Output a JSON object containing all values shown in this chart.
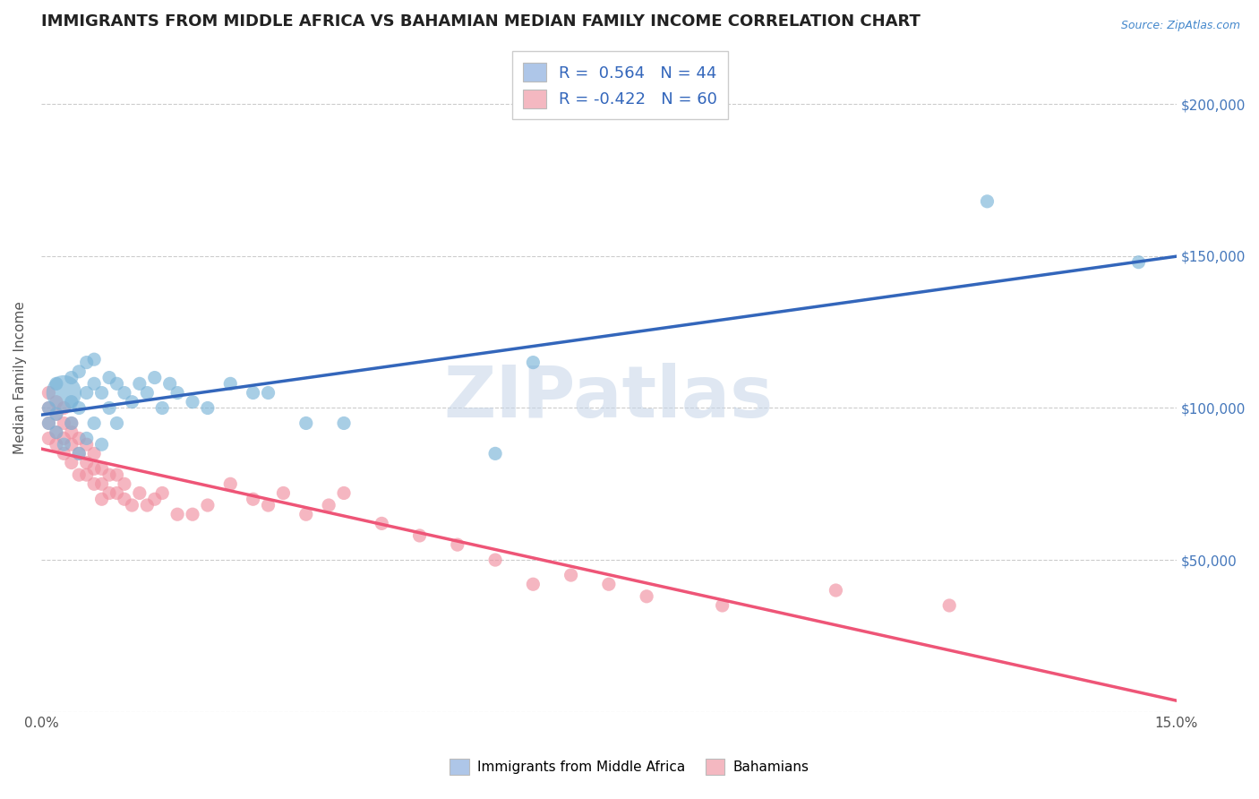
{
  "title": "IMMIGRANTS FROM MIDDLE AFRICA VS BAHAMIAN MEDIAN FAMILY INCOME CORRELATION CHART",
  "source": "Source: ZipAtlas.com",
  "ylabel": "Median Family Income",
  "xlim": [
    0.0,
    0.15
  ],
  "ylim": [
    0,
    220000
  ],
  "yticks_right": [
    50000,
    100000,
    150000,
    200000
  ],
  "ytick_labels_right": [
    "$50,000",
    "$100,000",
    "$150,000",
    "$200,000"
  ],
  "xticks": [
    0.0,
    0.15
  ],
  "xtick_labels": [
    "0.0%",
    "15.0%"
  ],
  "legend_entries": [
    {
      "color": "#aec6e8",
      "r": "0.564",
      "n": "44"
    },
    {
      "color": "#f4b8c1",
      "r": "-0.422",
      "n": "60"
    }
  ],
  "legend_labels": [
    "Immigrants from Middle Africa",
    "Bahamians"
  ],
  "blue_scatter_color": "#7ab4d8",
  "pink_scatter_color": "#f090a0",
  "blue_line_color": "#3366bb",
  "pink_line_color": "#ee5577",
  "watermark": "ZIPatlas",
  "background_color": "#ffffff",
  "grid_color": "#cccccc",
  "title_fontsize": 13,
  "label_fontsize": 11,
  "tick_fontsize": 11,
  "blue_scatter_x": [
    0.001,
    0.001,
    0.002,
    0.002,
    0.002,
    0.003,
    0.003,
    0.004,
    0.004,
    0.004,
    0.005,
    0.005,
    0.005,
    0.006,
    0.006,
    0.006,
    0.007,
    0.007,
    0.007,
    0.008,
    0.008,
    0.009,
    0.009,
    0.01,
    0.01,
    0.011,
    0.012,
    0.013,
    0.014,
    0.015,
    0.016,
    0.017,
    0.018,
    0.02,
    0.022,
    0.025,
    0.028,
    0.03,
    0.035,
    0.04,
    0.06,
    0.065,
    0.125,
    0.145
  ],
  "blue_scatter_y": [
    95000,
    100000,
    92000,
    98000,
    108000,
    88000,
    105000,
    95000,
    102000,
    110000,
    85000,
    100000,
    112000,
    90000,
    105000,
    115000,
    95000,
    108000,
    116000,
    88000,
    105000,
    100000,
    110000,
    95000,
    108000,
    105000,
    102000,
    108000,
    105000,
    110000,
    100000,
    108000,
    105000,
    102000,
    100000,
    108000,
    105000,
    105000,
    95000,
    95000,
    85000,
    115000,
    168000,
    148000
  ],
  "blue_scatter_sizes": [
    30,
    30,
    30,
    30,
    30,
    30,
    200,
    30,
    30,
    30,
    30,
    30,
    30,
    30,
    30,
    30,
    30,
    30,
    30,
    30,
    30,
    30,
    30,
    30,
    30,
    30,
    30,
    30,
    30,
    30,
    30,
    30,
    30,
    30,
    30,
    30,
    30,
    30,
    30,
    30,
    30,
    30,
    30,
    30
  ],
  "pink_scatter_x": [
    0.001,
    0.001,
    0.001,
    0.001,
    0.002,
    0.002,
    0.002,
    0.002,
    0.003,
    0.003,
    0.003,
    0.003,
    0.004,
    0.004,
    0.004,
    0.004,
    0.005,
    0.005,
    0.005,
    0.006,
    0.006,
    0.006,
    0.007,
    0.007,
    0.007,
    0.008,
    0.008,
    0.008,
    0.009,
    0.009,
    0.01,
    0.01,
    0.011,
    0.011,
    0.012,
    0.013,
    0.014,
    0.015,
    0.016,
    0.018,
    0.02,
    0.022,
    0.025,
    0.028,
    0.03,
    0.032,
    0.035,
    0.038,
    0.04,
    0.045,
    0.05,
    0.055,
    0.06,
    0.065,
    0.07,
    0.075,
    0.08,
    0.09,
    0.105,
    0.12
  ],
  "pink_scatter_y": [
    100000,
    95000,
    90000,
    105000,
    92000,
    98000,
    88000,
    102000,
    90000,
    95000,
    85000,
    100000,
    88000,
    92000,
    82000,
    95000,
    85000,
    90000,
    78000,
    82000,
    88000,
    78000,
    80000,
    75000,
    85000,
    75000,
    80000,
    70000,
    72000,
    78000,
    72000,
    78000,
    70000,
    75000,
    68000,
    72000,
    68000,
    70000,
    72000,
    65000,
    65000,
    68000,
    75000,
    70000,
    68000,
    72000,
    65000,
    68000,
    72000,
    62000,
    58000,
    55000,
    50000,
    42000,
    45000,
    42000,
    38000,
    35000,
    40000,
    35000
  ],
  "pink_scatter_sizes": [
    30,
    30,
    30,
    30,
    30,
    30,
    30,
    30,
    30,
    30,
    30,
    30,
    30,
    30,
    30,
    30,
    30,
    30,
    30,
    30,
    30,
    30,
    30,
    30,
    30,
    30,
    30,
    30,
    30,
    30,
    30,
    30,
    30,
    30,
    30,
    30,
    30,
    30,
    30,
    30,
    30,
    30,
    30,
    30,
    30,
    30,
    30,
    30,
    30,
    30,
    30,
    30,
    30,
    30,
    30,
    30,
    30,
    30,
    30,
    30
  ]
}
